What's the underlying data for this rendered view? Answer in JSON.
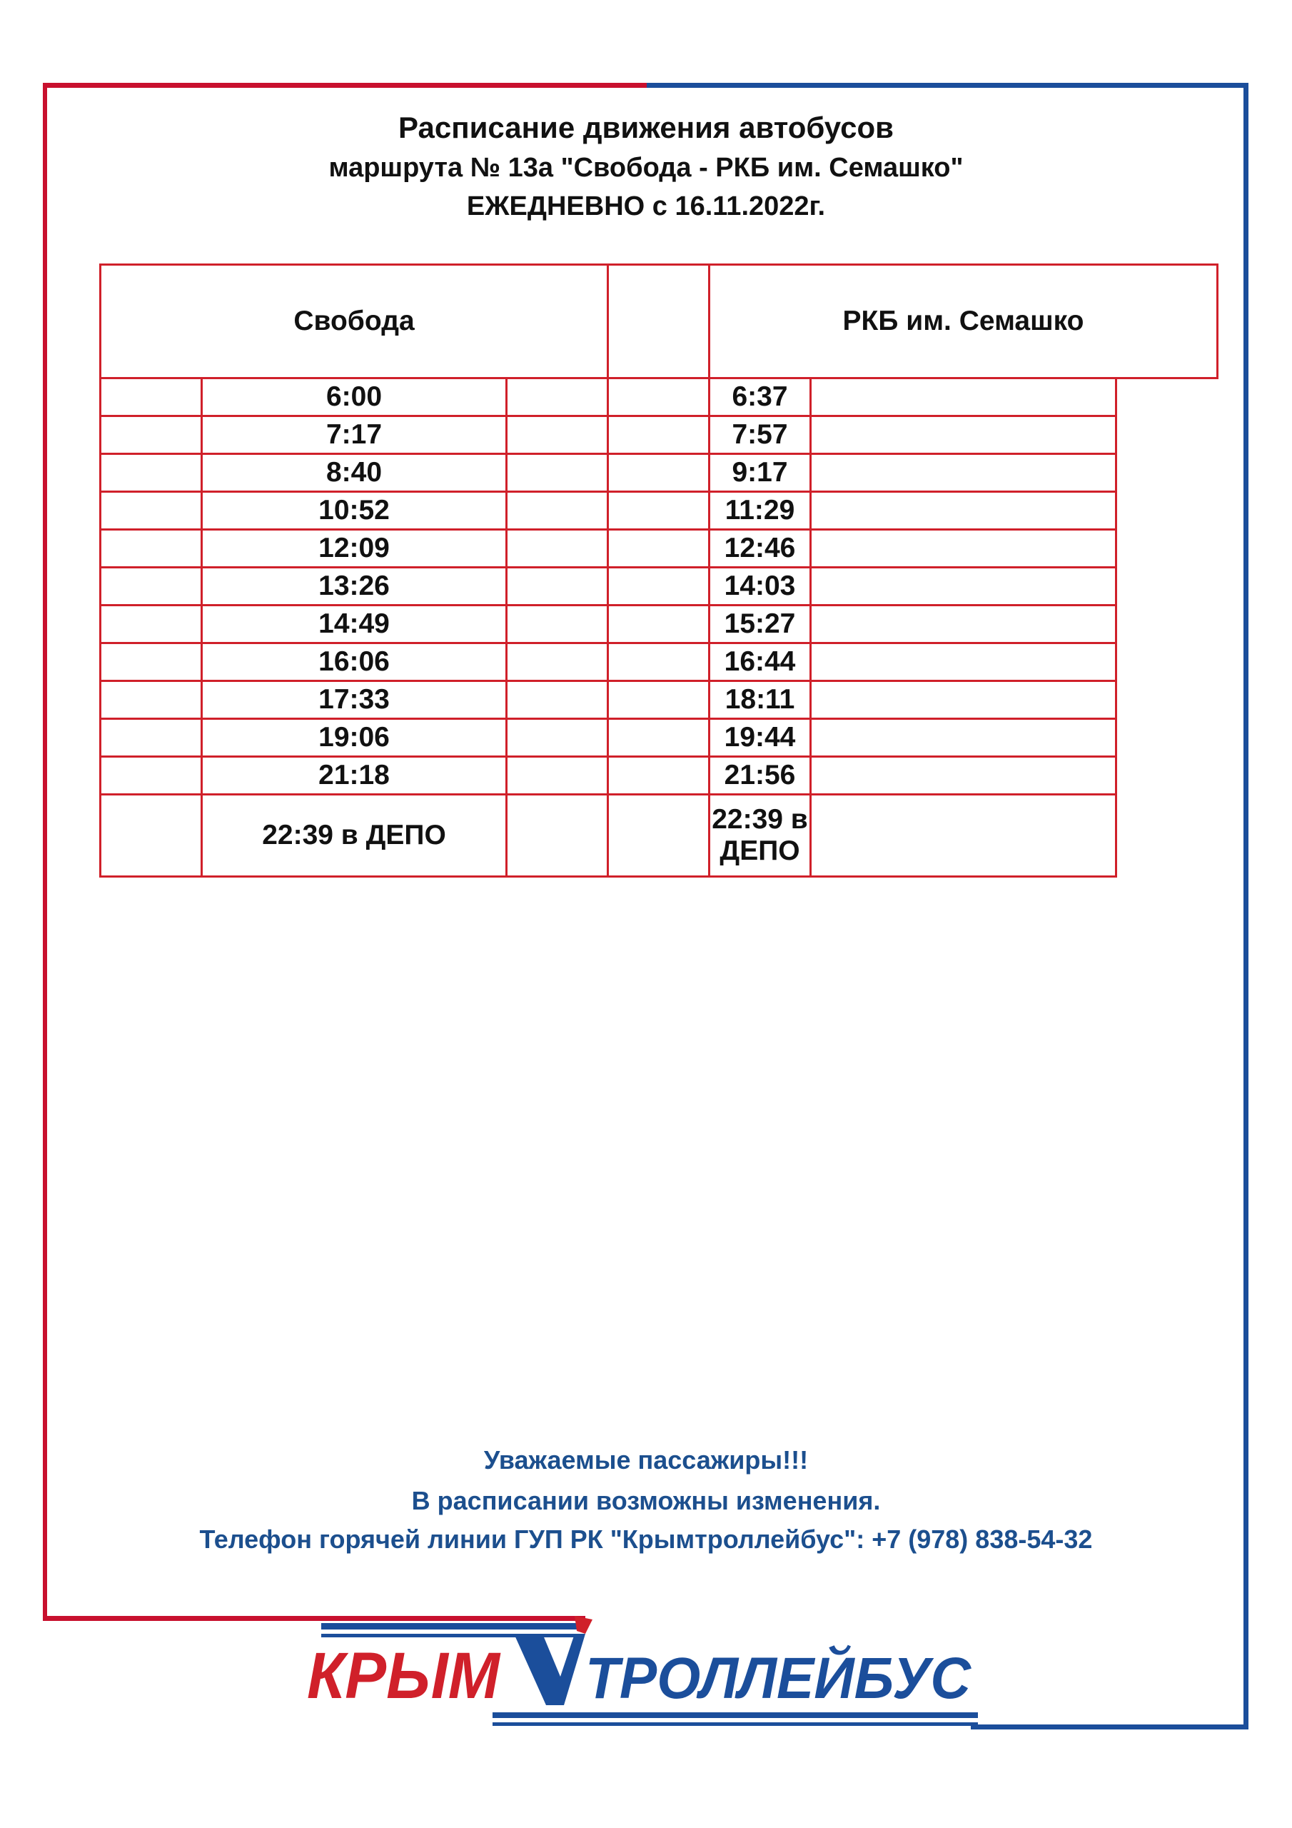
{
  "header": {
    "title": "Расписание движения автобусов",
    "route": "маршрута № 13а \"Свобода - РКБ им. Семашко\"",
    "validity": "ЕЖЕДНЕВНО с 16.11.2022г."
  },
  "schedule": {
    "left_stop": "Свобода",
    "right_stop": "РКБ им. Семашко",
    "rows": [
      {
        "left": "6:00",
        "right": "6:37"
      },
      {
        "left": "7:17",
        "right": "7:57"
      },
      {
        "left": "8:40",
        "right": "9:17"
      },
      {
        "left": "10:52",
        "right": "11:29"
      },
      {
        "left": "12:09",
        "right": "12:46"
      },
      {
        "left": "13:26",
        "right": "14:03"
      },
      {
        "left": "14:49",
        "right": "15:27"
      },
      {
        "left": "16:06",
        "right": "16:44"
      },
      {
        "left": "17:33",
        "right": "18:11"
      },
      {
        "left": "19:06",
        "right": "19:44"
      },
      {
        "left": "21:18",
        "right": "21:56"
      },
      {
        "left": "22:39 в ДЕПО",
        "right": "22:39 в ДЕПО"
      }
    ]
  },
  "footer": {
    "greeting": "Уважаемые пассажиры!!!",
    "notice": "В расписании возможны изменения.",
    "hotline": "Телефон горячей линии ГУП РК \"Крымтроллейбус\": +7 (978) 838-54-32"
  },
  "logo": {
    "text_red": "КРЫМ",
    "text_blue": "ТРОЛЛЕЙБУС"
  },
  "colors": {
    "red": "#d0202a",
    "blue": "#1c4f8e",
    "frame_red": "#c8102e",
    "frame_blue": "#1b4e9b"
  }
}
